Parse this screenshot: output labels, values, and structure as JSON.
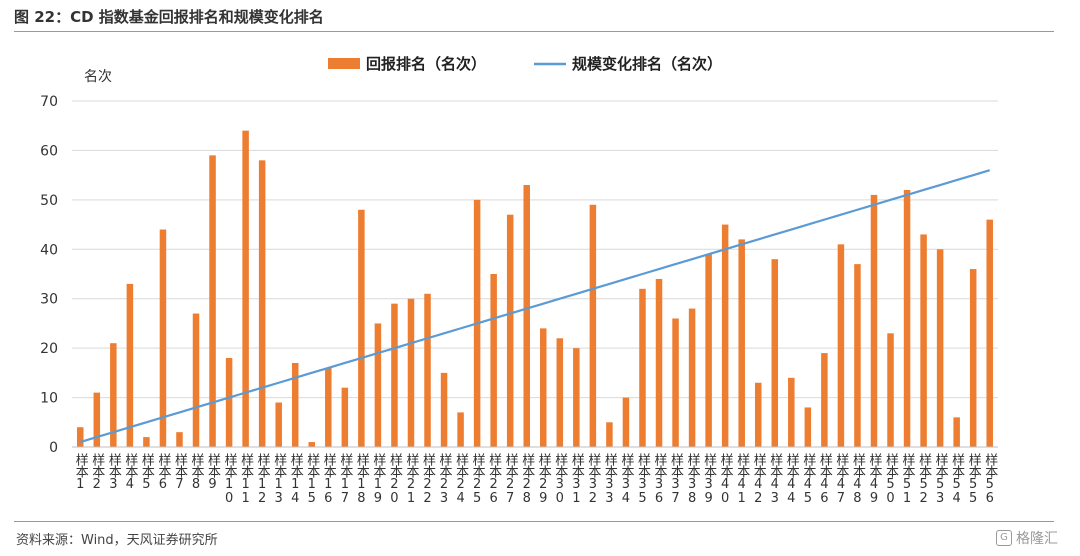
{
  "header": {
    "title": "图 22：CD 指数基金回报排名和规模变化排名"
  },
  "footer": {
    "source": "资料来源：Wind，天风证券研究所",
    "watermark": "格隆汇",
    "watermark_icon": "G"
  },
  "colors": {
    "bar": "#ed7d31",
    "line": "#5b9bd5",
    "rule": "#e7833a",
    "grid": "#d9d9d9"
  },
  "chart_data": {
    "type": "bar",
    "y_unit_label": "名次",
    "ylim": [
      0,
      70
    ],
    "yticks": [
      0,
      10,
      20,
      30,
      40,
      50,
      60,
      70
    ],
    "grid": true,
    "legend_position": "top-center",
    "categories": [
      "样本1",
      "样本2",
      "样本3",
      "样本4",
      "样本5",
      "样本6",
      "样本7",
      "样本8",
      "样本9",
      "样本10",
      "样本11",
      "样本12",
      "样本13",
      "样本14",
      "样本15",
      "样本16",
      "样本17",
      "样本18",
      "样本19",
      "样本20",
      "样本21",
      "样本22",
      "样本23",
      "样本24",
      "样本25",
      "样本26",
      "样本27",
      "样本28",
      "样本29",
      "样本30",
      "样本31",
      "样本32",
      "样本33",
      "样本34",
      "样本35",
      "样本36",
      "样本37",
      "样本38",
      "样本39",
      "样本40",
      "样本41",
      "样本42",
      "样本43",
      "样本44",
      "样本45",
      "样本46",
      "样本47",
      "样本48",
      "样本49",
      "样本50",
      "样本51",
      "样本52",
      "样本53",
      "样本54",
      "样本55",
      "样本56"
    ],
    "series": [
      {
        "name": "回报排名（名次）",
        "kind": "bar",
        "values": [
          4,
          11,
          21,
          33,
          2,
          44,
          3,
          27,
          59,
          18,
          64,
          58,
          9,
          17,
          1,
          16,
          12,
          48,
          25,
          29,
          30,
          31,
          15,
          7,
          50,
          35,
          47,
          53,
          24,
          22,
          20,
          49,
          5,
          10,
          32,
          34,
          26,
          28,
          39,
          45,
          42,
          13,
          38,
          14,
          8,
          19,
          41,
          37,
          51,
          23,
          52,
          43,
          40,
          6,
          36,
          46
        ]
      },
      {
        "name": "规模变化排名（名次）",
        "kind": "line",
        "values": [
          1,
          2,
          3,
          4,
          5,
          6,
          7,
          8,
          9,
          10,
          11,
          12,
          13,
          14,
          15,
          16,
          17,
          18,
          19,
          20,
          21,
          22,
          23,
          24,
          25,
          26,
          27,
          28,
          29,
          30,
          31,
          32,
          33,
          34,
          35,
          36,
          37,
          38,
          39,
          40,
          41,
          42,
          43,
          44,
          45,
          46,
          47,
          48,
          49,
          50,
          51,
          52,
          53,
          54,
          55,
          56
        ]
      }
    ]
  }
}
